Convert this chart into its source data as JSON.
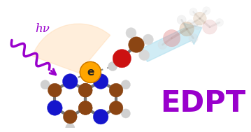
{
  "background_color": "#ffffff",
  "edpt_text": "EDPT",
  "edpt_color": "#9900cc",
  "hv_text": "hν",
  "hv_color": "#9900cc",
  "arrow_color": "#9900cc",
  "peach_color": "#FFDAB0",
  "molecule_brown": "#8B4513",
  "molecule_blue": "#1515CC",
  "molecule_red": "#CC1111",
  "molecule_gray": "#BBBBBB",
  "molecule_white": "#E8E8E8",
  "electron_color": "#FFA500",
  "electron_edge": "#CC7700",
  "ghost_alpha": 0.3,
  "blue_arrow_color": "#AADDEE"
}
